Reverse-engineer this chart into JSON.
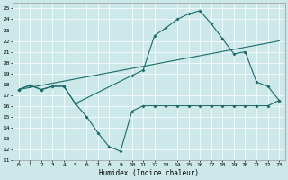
{
  "xlabel": "Humidex (Indice chaleur)",
  "xlim": [
    -0.5,
    23.5
  ],
  "ylim": [
    11,
    25.5
  ],
  "yticks": [
    11,
    12,
    13,
    14,
    15,
    16,
    17,
    18,
    19,
    20,
    21,
    22,
    23,
    24,
    25
  ],
  "xticks": [
    0,
    1,
    2,
    3,
    4,
    5,
    6,
    7,
    8,
    9,
    10,
    11,
    12,
    13,
    14,
    15,
    16,
    17,
    18,
    19,
    20,
    21,
    22,
    23
  ],
  "bg_color": "#cce8e8",
  "line_color": "#1a6b6b",
  "line1_x": [
    0,
    1,
    2,
    3,
    4,
    5,
    6,
    7,
    8,
    9,
    10,
    11,
    12,
    13,
    14,
    15,
    16,
    17,
    18,
    19,
    20,
    21,
    22,
    23
  ],
  "line1_y": [
    17.5,
    17.9,
    17.5,
    17.8,
    17.8,
    16.2,
    15.0,
    13.5,
    12.2,
    11.8,
    15.5,
    16.0,
    16.0,
    16.0,
    16.0,
    16.0,
    16.0,
    16.0,
    16.0,
    16.0,
    16.0,
    16.0,
    16.0,
    16.5
  ],
  "line2_x": [
    0,
    1,
    2,
    3,
    4,
    5,
    10,
    11,
    12,
    13,
    14,
    15,
    16,
    17,
    18,
    19,
    20,
    21,
    22,
    23
  ],
  "line2_y": [
    17.5,
    17.9,
    17.5,
    17.8,
    17.8,
    16.2,
    18.8,
    19.3,
    22.5,
    23.2,
    24.0,
    24.5,
    24.8,
    23.6,
    22.2,
    20.8,
    21.0,
    18.2,
    17.8,
    16.5
  ],
  "line3_x": [
    0,
    23
  ],
  "line3_y": [
    17.5,
    22.0
  ],
  "grid_color": "white"
}
